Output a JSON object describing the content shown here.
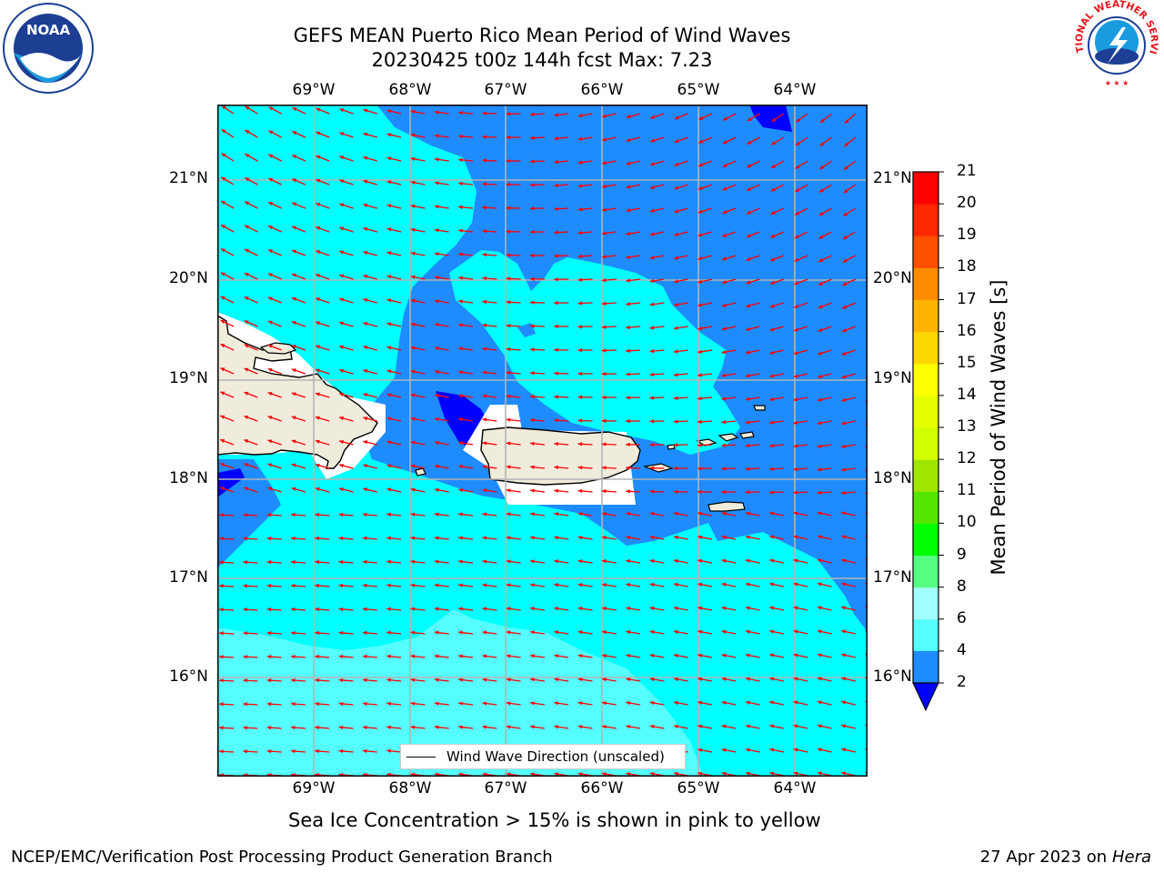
{
  "header": {
    "title": "GEFS MEAN Puerto Rico Mean Period of Wind Waves",
    "subtitle": "20230425 t00z 144h fcst   Max: 7.23"
  },
  "logos": {
    "noaa": {
      "text": "NOAA"
    },
    "nws": {
      "text": "NATIONAL WEATHER SERVICE"
    }
  },
  "map": {
    "lon_labels": [
      "69°W",
      "68°W",
      "67°W",
      "66°W",
      "65°W",
      "64°W"
    ],
    "lat_labels": [
      "21°N",
      "20°N",
      "19°N",
      "18°N",
      "17°N",
      "16°N"
    ],
    "legend_label": "Wind Wave Direction (unscaled)",
    "colors": {
      "level_2_4": "#1e8cff",
      "level_4_6": "#00ffff",
      "level_6_8": "#55ffff",
      "below_2": "#0000ff",
      "land": "#efecdc",
      "arrows": "#ff0000"
    }
  },
  "colorbar": {
    "title": "Mean Period of Wind Waves [s]",
    "ticks": [
      "2",
      "4",
      "6",
      "8",
      "9",
      "10",
      "11",
      "12",
      "13",
      "14",
      "15",
      "16",
      "17",
      "18",
      "19",
      "20",
      "21"
    ],
    "colors": [
      "#1e8cff",
      "#00ffff",
      "#55ffff",
      "#a0ffff",
      "#55ff82",
      "#00ff00",
      "#55e600",
      "#a0e600",
      "#d2ff00",
      "#e6ff00",
      "#ffff00",
      "#ffd700",
      "#ffb400",
      "#ff8c00",
      "#ff5000",
      "#ff2800",
      "#ff0000"
    ],
    "underflow_color": "#0000ff"
  },
  "footnote": "Sea Ice Concentration > 15% is shown in pink to yellow",
  "footer": {
    "left": "NCEP/EMC/Verification Post Processing Product Generation Branch",
    "right_date": "27 Apr 2023 on ",
    "right_host": "Hera"
  }
}
